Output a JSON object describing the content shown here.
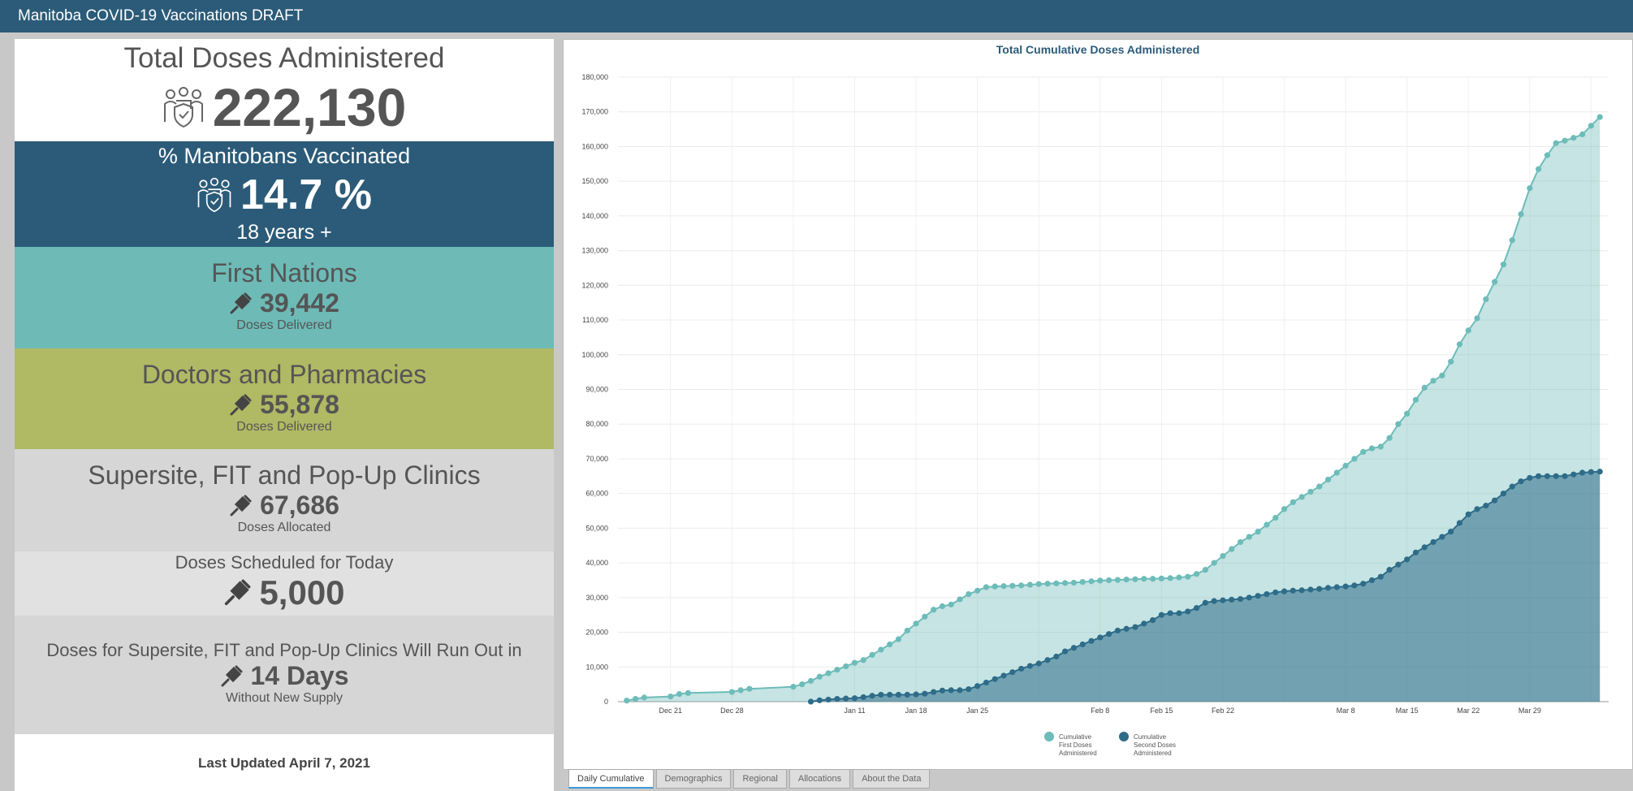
{
  "app": {
    "title": "Manitoba COVID-19 Vaccinations DRAFT"
  },
  "panels": {
    "total": {
      "title": "Total Doses Administered",
      "value": "222,130",
      "icon": "people-shield-icon"
    },
    "percent": {
      "title": "% Manitobans Vaccinated",
      "value": "14.7 %",
      "sub": "18 years +",
      "icon": "people-shield-icon",
      "color": "#2b5b78"
    },
    "first_nations": {
      "title": "First Nations",
      "value": "39,442",
      "sub": "Doses Delivered",
      "icon": "syringe-icon",
      "color": "#6dbab6"
    },
    "doctors": {
      "title": "Doctors and Pharmacies",
      "value": "55,878",
      "sub": "Doses Delivered",
      "icon": "syringe-icon",
      "color": "#b0b964"
    },
    "supersite": {
      "title": "Supersite, FIT and Pop-Up Clinics",
      "value": "67,686",
      "sub": "Doses Allocated",
      "icon": "syringe-icon",
      "color": "#d6d6d6"
    },
    "scheduled": {
      "title": "Doses Scheduled for Today",
      "value": "5,000",
      "icon": "syringe-icon",
      "color": "#e1e1e1"
    },
    "runout": {
      "title": "Doses for Supersite, FIT and Pop-Up Clinics Will Run Out in",
      "value": "14 Days",
      "sub": "Without New Supply",
      "icon": "syringe-icon",
      "color": "#d6d6d6"
    },
    "updated": "Last Updated April 7, 2021"
  },
  "tabs": [
    "Daily Cumulative",
    "Demographics",
    "Regional",
    "Allocations",
    "About the Data"
  ],
  "colors": {
    "first": "#6dbcb9",
    "second": "#2e6c89"
  },
  "chart_data": {
    "type": "area",
    "title": "Total Cumulative Doses Administered",
    "x_labels": [
      "Dec 21",
      "Dec 28",
      "Jan 11",
      "Jan 18",
      "Jan 25",
      "Feb 8",
      "Feb 15",
      "Feb 22",
      "Mar 8",
      "Mar 15",
      "Mar 22",
      "Mar 29"
    ],
    "ylim": [
      0,
      180000
    ],
    "y_ticks": [
      "0",
      "10,000",
      "20,000",
      "30,000",
      "40,000",
      "50,000",
      "60,000",
      "70,000",
      "80,000",
      "90,000",
      "100,000",
      "110,000",
      "120,000",
      "130,000",
      "140,000",
      "150,000",
      "160,000",
      "170,000",
      "180,000"
    ],
    "legend_position": "bottom-center",
    "series": [
      {
        "name": "Cumulative First Doses Administered",
        "points": [
          [
            "2020-12-16",
            300
          ],
          [
            "2020-12-17",
            800
          ],
          [
            "2020-12-18",
            1200
          ],
          [
            "2020-12-21",
            1500
          ],
          [
            "2020-12-22",
            2200
          ],
          [
            "2020-12-23",
            2500
          ],
          [
            "2020-12-28",
            2800
          ],
          [
            "2020-12-29",
            3300
          ],
          [
            "2020-12-30",
            3700
          ],
          [
            "2021-01-04",
            4300
          ],
          [
            "2021-01-05",
            5000
          ],
          [
            "2021-01-06",
            6000
          ],
          [
            "2021-01-07",
            7200
          ],
          [
            "2021-01-08",
            8200
          ],
          [
            "2021-01-09",
            9200
          ],
          [
            "2021-01-10",
            10200
          ],
          [
            "2021-01-11",
            11200
          ],
          [
            "2021-01-12",
            12000
          ],
          [
            "2021-01-13",
            13500
          ],
          [
            "2021-01-14",
            15000
          ],
          [
            "2021-01-15",
            16500
          ],
          [
            "2021-01-16",
            18000
          ],
          [
            "2021-01-17",
            20500
          ],
          [
            "2021-01-18",
            22500
          ],
          [
            "2021-01-19",
            24500
          ],
          [
            "2021-01-20",
            26500
          ],
          [
            "2021-01-21",
            27500
          ],
          [
            "2021-01-22",
            28000
          ],
          [
            "2021-01-23",
            29500
          ],
          [
            "2021-01-24",
            31000
          ],
          [
            "2021-01-25",
            32000
          ],
          [
            "2021-01-26",
            33000
          ],
          [
            "2021-01-27",
            33200
          ],
          [
            "2021-01-28",
            33300
          ],
          [
            "2021-01-29",
            33400
          ],
          [
            "2021-01-30",
            33500
          ],
          [
            "2021-01-31",
            33700
          ],
          [
            "2021-02-01",
            33900
          ],
          [
            "2021-02-02",
            34000
          ],
          [
            "2021-02-03",
            34100
          ],
          [
            "2021-02-04",
            34200
          ],
          [
            "2021-02-05",
            34300
          ],
          [
            "2021-02-06",
            34500
          ],
          [
            "2021-02-07",
            34700
          ],
          [
            "2021-02-08",
            34900
          ],
          [
            "2021-02-09",
            35000
          ],
          [
            "2021-02-10",
            35100
          ],
          [
            "2021-02-11",
            35200
          ],
          [
            "2021-02-12",
            35300
          ],
          [
            "2021-02-13",
            35400
          ],
          [
            "2021-02-14",
            35400
          ],
          [
            "2021-02-15",
            35500
          ],
          [
            "2021-02-16",
            35600
          ],
          [
            "2021-02-17",
            35800
          ],
          [
            "2021-02-18",
            36000
          ],
          [
            "2021-02-19",
            36800
          ],
          [
            "2021-02-20",
            38000
          ],
          [
            "2021-02-21",
            40000
          ],
          [
            "2021-02-22",
            42000
          ],
          [
            "2021-02-23",
            44000
          ],
          [
            "2021-02-24",
            46000
          ],
          [
            "2021-02-25",
            47500
          ],
          [
            "2021-02-26",
            49000
          ],
          [
            "2021-02-27",
            51000
          ],
          [
            "2021-02-28",
            53000
          ],
          [
            "2021-03-01",
            55500
          ],
          [
            "2021-03-02",
            57500
          ],
          [
            "2021-03-03",
            59000
          ],
          [
            "2021-03-04",
            60500
          ],
          [
            "2021-03-05",
            62000
          ],
          [
            "2021-03-06",
            64000
          ],
          [
            "2021-03-07",
            66000
          ],
          [
            "2021-03-08",
            68000
          ],
          [
            "2021-03-09",
            70000
          ],
          [
            "2021-03-10",
            72000
          ],
          [
            "2021-03-11",
            73000
          ],
          [
            "2021-03-12",
            73500
          ],
          [
            "2021-03-13",
            76000
          ],
          [
            "2021-03-14",
            80000
          ],
          [
            "2021-03-15",
            83000
          ],
          [
            "2021-03-16",
            87000
          ],
          [
            "2021-03-17",
            90500
          ],
          [
            "2021-03-18",
            92500
          ],
          [
            "2021-03-19",
            94000
          ],
          [
            "2021-03-20",
            98000
          ],
          [
            "2021-03-21",
            103000
          ],
          [
            "2021-03-22",
            107000
          ],
          [
            "2021-03-23",
            110500
          ],
          [
            "2021-03-24",
            116000
          ],
          [
            "2021-03-25",
            121000
          ],
          [
            "2021-03-26",
            126000
          ],
          [
            "2021-03-27",
            133000
          ],
          [
            "2021-03-28",
            140500
          ],
          [
            "2021-03-29",
            148000
          ],
          [
            "2021-03-30",
            153500
          ],
          [
            "2021-03-31",
            157500
          ],
          [
            "2021-04-01",
            161000
          ],
          [
            "2021-04-02",
            161700
          ],
          [
            "2021-04-03",
            162500
          ],
          [
            "2021-04-04",
            163500
          ],
          [
            "2021-04-05",
            166000
          ],
          [
            "2021-04-06",
            168500
          ]
        ]
      },
      {
        "name": "Cumulative Second Doses Administered",
        "points": [
          [
            "2021-01-06",
            0
          ],
          [
            "2021-01-07",
            400
          ],
          [
            "2021-01-08",
            600
          ],
          [
            "2021-01-09",
            800
          ],
          [
            "2021-01-10",
            900
          ],
          [
            "2021-01-11",
            1000
          ],
          [
            "2021-01-12",
            1300
          ],
          [
            "2021-01-13",
            1700
          ],
          [
            "2021-01-14",
            2000
          ],
          [
            "2021-01-15",
            2000
          ],
          [
            "2021-01-16",
            2000
          ],
          [
            "2021-01-17",
            2000
          ],
          [
            "2021-01-18",
            2100
          ],
          [
            "2021-01-19",
            2300
          ],
          [
            "2021-01-20",
            2800
          ],
          [
            "2021-01-21",
            3200
          ],
          [
            "2021-01-22",
            3300
          ],
          [
            "2021-01-23",
            3300
          ],
          [
            "2021-01-24",
            3600
          ],
          [
            "2021-01-25",
            4500
          ],
          [
            "2021-01-26",
            5500
          ],
          [
            "2021-01-27",
            6500
          ],
          [
            "2021-01-28",
            7500
          ],
          [
            "2021-01-29",
            8500
          ],
          [
            "2021-01-30",
            9500
          ],
          [
            "2021-01-31",
            10300
          ],
          [
            "2021-02-01",
            11000
          ],
          [
            "2021-02-02",
            12000
          ],
          [
            "2021-02-03",
            13000
          ],
          [
            "2021-02-04",
            14500
          ],
          [
            "2021-02-05",
            15500
          ],
          [
            "2021-02-06",
            16500
          ],
          [
            "2021-02-07",
            17500
          ],
          [
            "2021-02-08",
            18500
          ],
          [
            "2021-02-09",
            19500
          ],
          [
            "2021-02-10",
            20500
          ],
          [
            "2021-02-11",
            21000
          ],
          [
            "2021-02-12",
            21500
          ],
          [
            "2021-02-13",
            22500
          ],
          [
            "2021-02-14",
            23500
          ],
          [
            "2021-02-15",
            25000
          ],
          [
            "2021-02-16",
            25500
          ],
          [
            "2021-02-17",
            25500
          ],
          [
            "2021-02-18",
            26000
          ],
          [
            "2021-02-19",
            27000
          ],
          [
            "2021-02-20",
            28500
          ],
          [
            "2021-02-21",
            29000
          ],
          [
            "2021-02-22",
            29200
          ],
          [
            "2021-02-23",
            29400
          ],
          [
            "2021-02-24",
            29600
          ],
          [
            "2021-02-25",
            30000
          ],
          [
            "2021-02-26",
            30500
          ],
          [
            "2021-02-27",
            31000
          ],
          [
            "2021-02-28",
            31500
          ],
          [
            "2021-03-01",
            31800
          ],
          [
            "2021-03-02",
            32000
          ],
          [
            "2021-03-03",
            32100
          ],
          [
            "2021-03-04",
            32300
          ],
          [
            "2021-03-05",
            32500
          ],
          [
            "2021-03-06",
            32800
          ],
          [
            "2021-03-07",
            33000
          ],
          [
            "2021-03-08",
            33200
          ],
          [
            "2021-03-09",
            33500
          ],
          [
            "2021-03-10",
            34000
          ],
          [
            "2021-03-11",
            35000
          ],
          [
            "2021-03-12",
            36000
          ],
          [
            "2021-03-13",
            38000
          ],
          [
            "2021-03-14",
            39500
          ],
          [
            "2021-03-15",
            41000
          ],
          [
            "2021-03-16",
            43000
          ],
          [
            "2021-03-17",
            44500
          ],
          [
            "2021-03-18",
            46000
          ],
          [
            "2021-03-19",
            47500
          ],
          [
            "2021-03-20",
            49000
          ],
          [
            "2021-03-21",
            51500
          ],
          [
            "2021-03-22",
            54000
          ],
          [
            "2021-03-23",
            55500
          ],
          [
            "2021-03-24",
            56500
          ],
          [
            "2021-03-25",
            58000
          ],
          [
            "2021-03-26",
            60000
          ],
          [
            "2021-03-27",
            62000
          ],
          [
            "2021-03-28",
            63500
          ],
          [
            "2021-03-29",
            64500
          ],
          [
            "2021-03-30",
            65000
          ],
          [
            "2021-03-31",
            65000
          ],
          [
            "2021-04-01",
            65000
          ],
          [
            "2021-04-02",
            65000
          ],
          [
            "2021-04-03",
            65500
          ],
          [
            "2021-04-04",
            66000
          ],
          [
            "2021-04-05",
            66200
          ],
          [
            "2021-04-06",
            66300
          ]
        ]
      }
    ]
  }
}
